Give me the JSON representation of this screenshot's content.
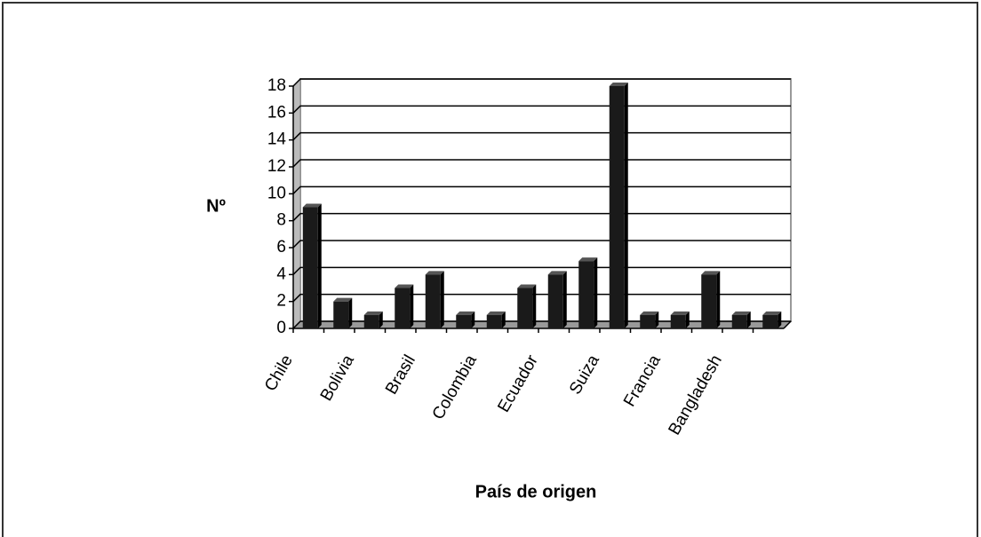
{
  "chart_data": {
    "type": "bar",
    "ylabel": "Nº",
    "xlabel": "País de origen",
    "categories": [
      "Chile",
      null,
      "Bolivia",
      null,
      "Brasil",
      null,
      "Colombia",
      null,
      "Ecuador",
      null,
      "Suiza",
      null,
      "Francia",
      null,
      "Bangladesh",
      null
    ],
    "values": [
      9,
      2,
      1,
      3,
      4,
      1,
      1,
      3,
      4,
      5,
      18,
      1,
      1,
      4,
      1,
      1
    ],
    "color": "#1a1a1a",
    "ylim": [
      0,
      18
    ],
    "yticks": [
      0,
      2,
      4,
      6,
      8,
      10,
      12,
      14,
      16,
      18
    ],
    "grid": true
  }
}
